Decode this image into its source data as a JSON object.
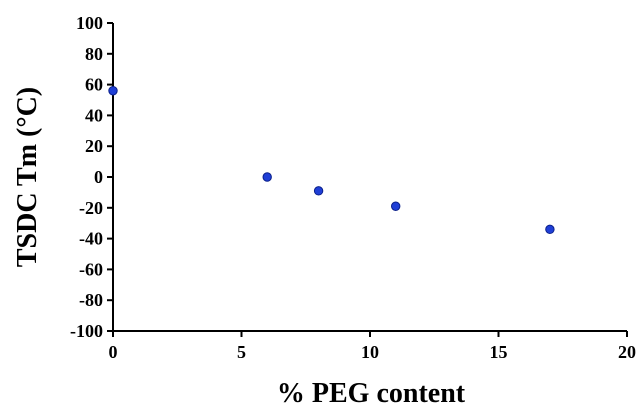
{
  "chart_data": {
    "type": "scatter",
    "title": "",
    "xlabel": "% PEG content",
    "ylabel": "TSDC Tm (°C)",
    "xlim": [
      0,
      20
    ],
    "ylim": [
      -100,
      100
    ],
    "x_ticks": [
      0,
      5,
      10,
      15,
      20
    ],
    "y_ticks": [
      100,
      80,
      60,
      40,
      20,
      0,
      -20,
      -40,
      -60,
      -80,
      -100
    ],
    "grid": false,
    "legend": "none",
    "marker_color": "#1f3fd6",
    "marker_edge_color": "#0a1f8a",
    "x": [
      0,
      6,
      8,
      11,
      17
    ],
    "y": [
      56,
      0,
      -9,
      -19,
      -34
    ]
  }
}
